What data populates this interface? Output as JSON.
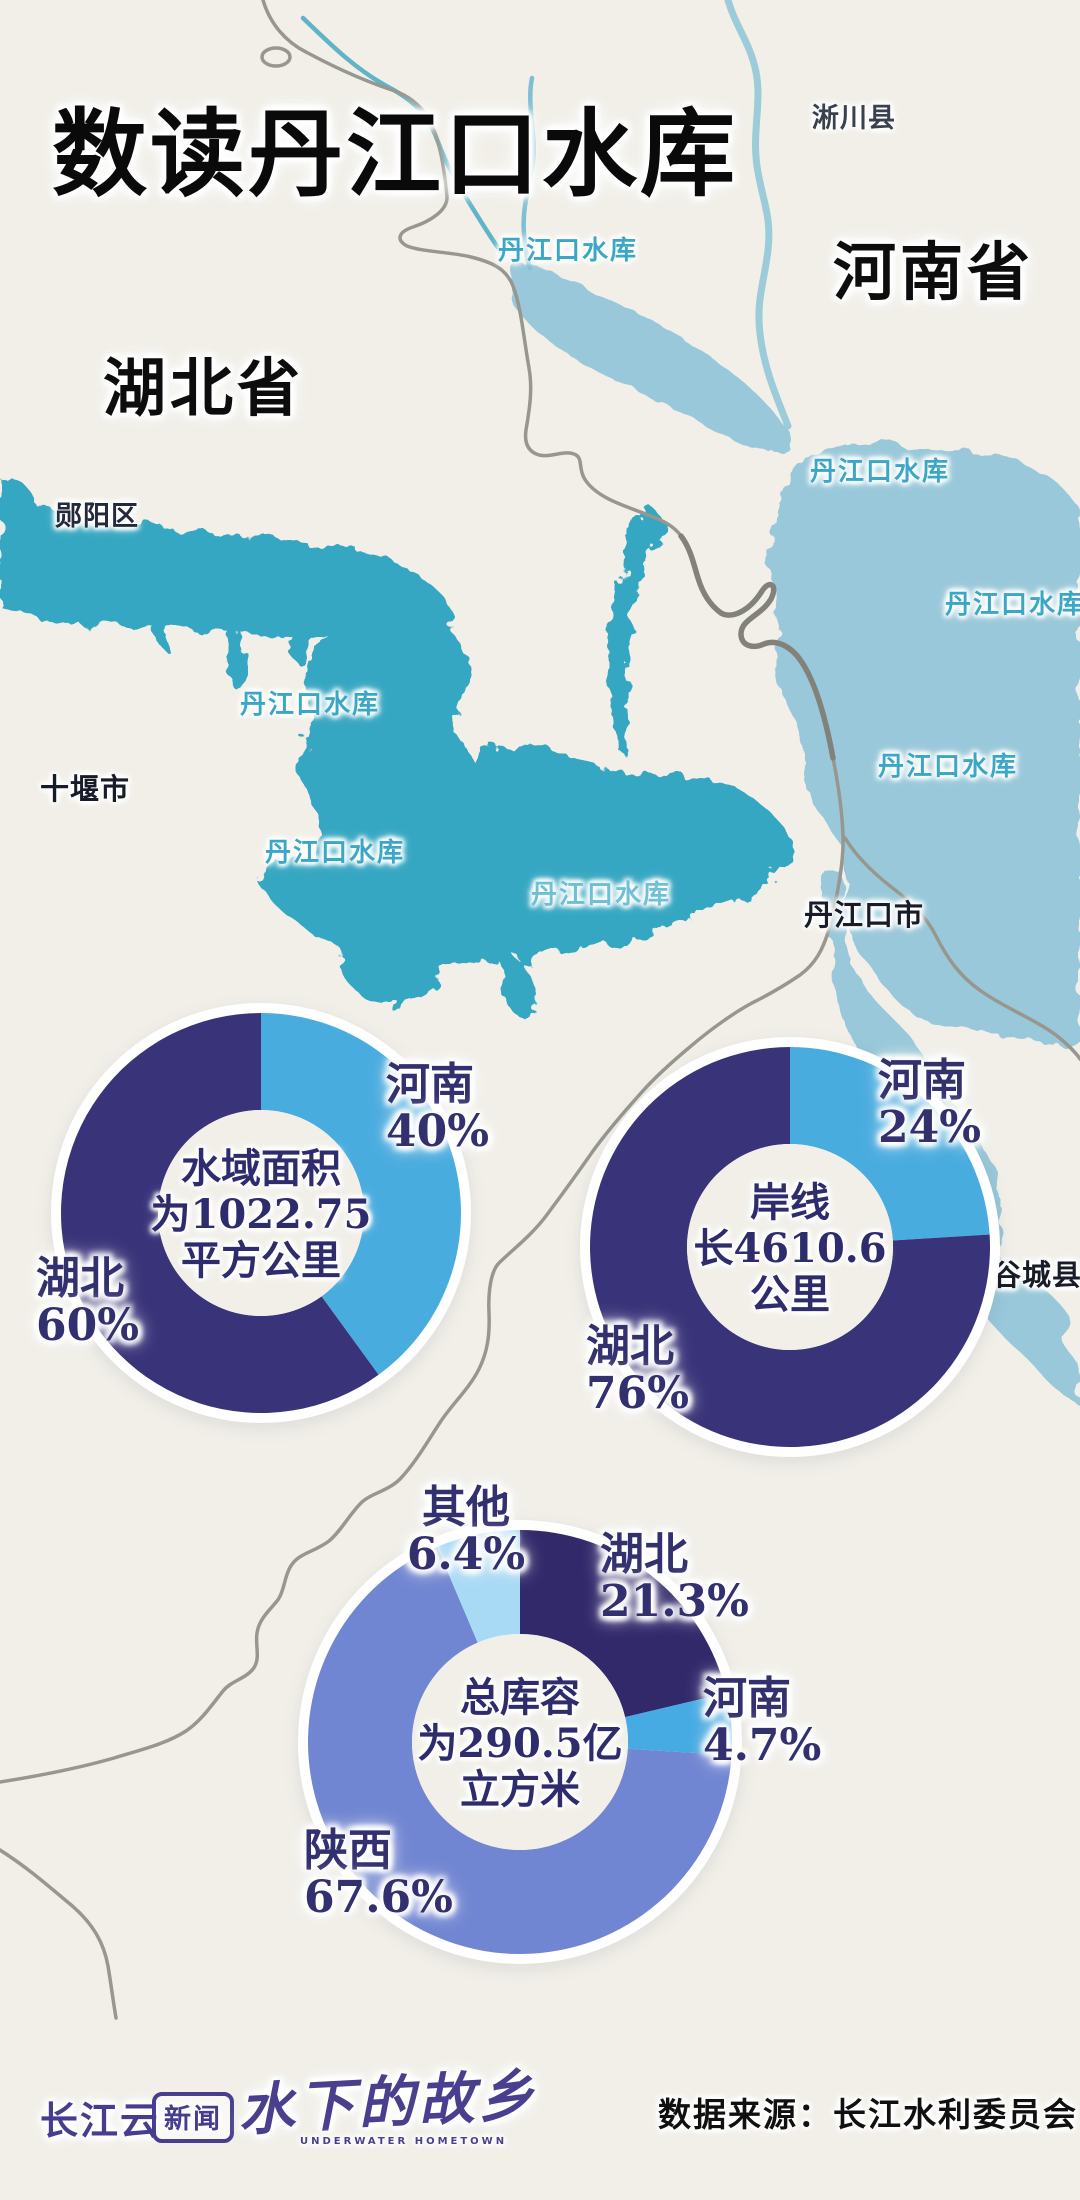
{
  "title": "数读丹江口水库",
  "map": {
    "province_labels": [
      {
        "text": "河南省"
      },
      {
        "text": "湖北省"
      }
    ],
    "place_labels": [
      {
        "text": "淅川县"
      },
      {
        "text": "郧阳区"
      },
      {
        "text": "十堰市"
      },
      {
        "text": "丹江口市"
      },
      {
        "text": "谷城县"
      }
    ],
    "water_labels": [
      {
        "text": "丹江口水库"
      },
      {
        "text": "丹江口水库"
      },
      {
        "text": "丹江口水库"
      },
      {
        "text": "丹江口水库"
      },
      {
        "text": "丹江口水库"
      },
      {
        "text": "丹江口水库"
      },
      {
        "text": "丹江口水库"
      }
    ],
    "colors": {
      "background": "#f1efe8",
      "reservoir_hubei": "#35a7c2",
      "reservoir_henan": "#98c8da",
      "boundary_gray": "#97978f",
      "water_label_teal": "#3ba7c6"
    }
  },
  "chart_data": [
    {
      "type": "donut",
      "center_text": "水域面积\n为1022.75\n平方公里",
      "slices": [
        {
          "label": "河南",
          "value": 40,
          "pct": "40%",
          "color": "#49acdf"
        },
        {
          "label": "湖北",
          "value": 60,
          "pct": "60%",
          "color": "#393379"
        }
      ]
    },
    {
      "type": "donut",
      "center_text": "岸线\n长4610.6\n公里",
      "slices": [
        {
          "label": "河南",
          "value": 24,
          "pct": "24%",
          "color": "#49acdf"
        },
        {
          "label": "湖北",
          "value": 76,
          "pct": "76%",
          "color": "#393379"
        }
      ]
    },
    {
      "type": "donut",
      "center_text": "总库容\n为290.5亿\n立方米",
      "slices": [
        {
          "label": "湖北",
          "value": 21.3,
          "pct": "21.3%",
          "color": "#32296b"
        },
        {
          "label": "河南",
          "value": 4.7,
          "pct": "4.7%",
          "color": "#45abe2"
        },
        {
          "label": "陕西",
          "value": 67.6,
          "pct": "67.6%",
          "color": "#7186d2"
        },
        {
          "label": "其他",
          "value": 6.4,
          "pct": "6.4%",
          "color": "#a8daf5"
        }
      ]
    }
  ],
  "footer": {
    "brand": "长江云",
    "badge": "新闻",
    "calligraphy": "水下的故乡",
    "caption": "UNDERWATER HOMETOWN",
    "source": "数据来源：长江水利委员会"
  }
}
